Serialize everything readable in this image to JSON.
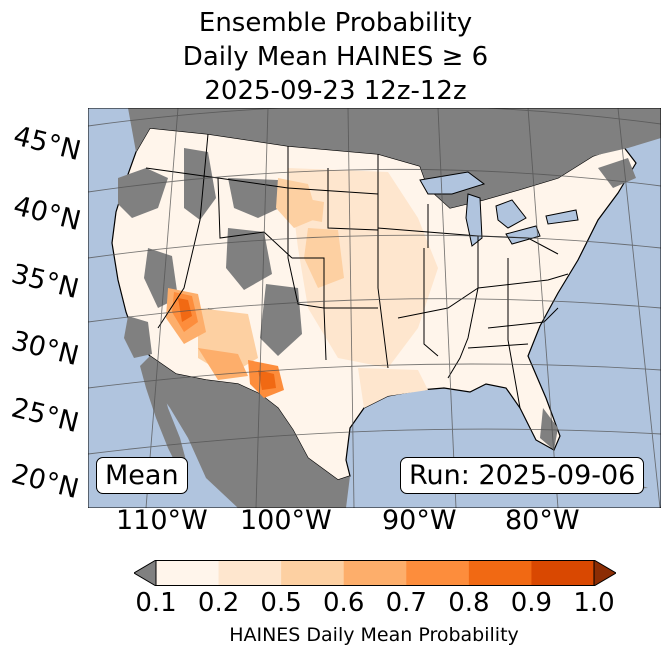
{
  "title": {
    "line1": "Ensemble Probability",
    "line2": "Daily Mean HAINES ≥ 6",
    "line3": "2025-09-23 12z-12z"
  },
  "map": {
    "lat_labels": [
      "45°N",
      "40°N",
      "35°N",
      "30°N",
      "25°N",
      "20°N"
    ],
    "lon_labels": [
      "110°W",
      "100°W",
      "90°W",
      "80°W"
    ],
    "stat_label": "Mean",
    "run_label": "Run: 2025-09-06",
    "colors": {
      "ocean": "#b0c4de",
      "missing": "#808080",
      "land_low": "#fff5eb"
    }
  },
  "colorbar": {
    "ticks": [
      "0.1",
      "0.2",
      "0.5",
      "0.6",
      "0.7",
      "0.8",
      "0.9",
      "1.0"
    ],
    "colors": [
      "#fff5eb",
      "#fee6ce",
      "#fdd0a2",
      "#fdae6b",
      "#fd8d3c",
      "#f16913",
      "#d94801"
    ],
    "under_color": "#808080",
    "over_color": "#8c2d04",
    "label": "HAINES Daily Mean Probability"
  }
}
